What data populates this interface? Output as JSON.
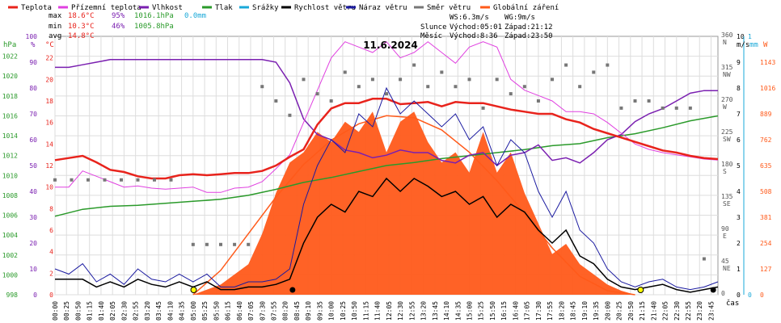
{
  "legend": [
    {
      "label": "Teplota",
      "color": "#e8231c"
    },
    {
      "label": "Přízemní teplota",
      "color": "#e040e0"
    },
    {
      "label": "Vlhkost",
      "color": "#7a1fb0"
    },
    {
      "label": "Tlak",
      "color": "#2a9a2a"
    },
    {
      "label": "Srážky",
      "color": "#19a8d8"
    },
    {
      "label": "Rychlost větru",
      "color": "#000000"
    },
    {
      "label": "Náraz větru",
      "color": "#1a1aa0"
    },
    {
      "label": "Směr větru",
      "color": "#777777"
    },
    {
      "label": "Globální záření",
      "color": "#ff5a1a"
    }
  ],
  "stats": {
    "max": {
      "label": "max",
      "temp": "18.6°C",
      "hum": "95%",
      "press": "1016.1hPa",
      "rain": "0.0mm"
    },
    "min": {
      "label": "min",
      "temp": "10.3°C",
      "hum": "46%",
      "press": "1005.8hPa"
    },
    "avg": {
      "label": "avg",
      "temp": "14.8°C"
    }
  },
  "wind_info": {
    "ws": "WS:6.3m/s",
    "wg": "WG:9m/s"
  },
  "sun": {
    "label": "Slunce",
    "rise": "Východ:05:01",
    "set": "Západ:21:12"
  },
  "moon": {
    "label": "Měsíc",
    "rise": "Východ:8:36",
    "set": "Západ:23:50"
  },
  "colors": {
    "temp": "#e8231c",
    "ground": "#e040e0",
    "hum": "#7a1fb0",
    "press": "#2a9a2a",
    "rain": "#19a8d8",
    "wind": "#000000",
    "gust": "#1a1aa0",
    "dir": "#777777",
    "rad": "#ff5a1a",
    "grid": "#dddddd"
  },
  "chart_data": {
    "type": "line",
    "title": "11.6.2024",
    "x_end_label": "čas",
    "x_ticks": [
      "00:00",
      "00:25",
      "00:50",
      "01:15",
      "01:40",
      "02:05",
      "02:30",
      "02:55",
      "03:20",
      "03:45",
      "04:10",
      "04:35",
      "05:00",
      "05:25",
      "05:50",
      "06:15",
      "06:40",
      "07:05",
      "07:30",
      "07:55",
      "08:20",
      "08:45",
      "09:10",
      "09:35",
      "10:00",
      "10:25",
      "10:50",
      "11:15",
      "11:40",
      "12:05",
      "12:30",
      "12:55",
      "13:20",
      "13:45",
      "14:10",
      "14:35",
      "15:00",
      "15:25",
      "15:50",
      "16:15",
      "16:40",
      "17:05",
      "17:30",
      "17:55",
      "18:20",
      "18:45",
      "19:10",
      "19:35",
      "20:00",
      "20:25",
      "20:50",
      "21:15",
      "21:40",
      "22:05",
      "22:30",
      "22:55",
      "23:20",
      "23:45"
    ],
    "axes": {
      "hpa": {
        "unit": "hPa",
        "range": [
          998,
          1024
        ],
        "ticks": [
          "998",
          "1000",
          "1002",
          "1004",
          "1006",
          "1008",
          "1010",
          "1012",
          "1014",
          "1016",
          "1018",
          "1020",
          "1022"
        ]
      },
      "pct": {
        "unit": "%",
        "range": [
          0,
          100
        ],
        "ticks": [
          "0",
          "10",
          "20",
          "30",
          "40",
          "50",
          "60",
          "70",
          "80",
          "90",
          "100"
        ]
      },
      "degc": {
        "unit": "°C",
        "range": [
          0,
          24
        ],
        "ticks": [
          "0",
          "2",
          "4",
          "6",
          "8",
          "10",
          "12",
          "14",
          "16",
          "18",
          "20",
          "22"
        ]
      },
      "dir": {
        "range": [
          0,
          360
        ],
        "ticks": [
          [
            "360",
            "N"
          ],
          [
            "315",
            "NW"
          ],
          [
            "270",
            "W"
          ],
          [
            "225",
            "SW"
          ],
          [
            "180",
            "S"
          ],
          [
            "135",
            "SE"
          ],
          [
            "90",
            "E"
          ],
          [
            "45",
            "NE"
          ],
          [
            "0",
            ""
          ]
        ]
      },
      "ms": {
        "unit": "m/s",
        "range": [
          0,
          10
        ],
        "ticks": [
          "0",
          "1",
          "2",
          "3",
          "4",
          "5",
          "6",
          "7",
          "8",
          "9",
          "10"
        ]
      },
      "mm": {
        "unit": "mm",
        "range": [
          0,
          1
        ],
        "ticks": [
          "0",
          "1"
        ]
      },
      "wm2": {
        "unit": "W",
        "range": [
          0,
          1270
        ],
        "ticks": [
          "0",
          "127",
          "254",
          "381",
          "508",
          "635",
          "762",
          "889",
          "1016",
          "1143"
        ]
      }
    },
    "series": [
      {
        "name": "Teplota",
        "axis": "degc",
        "x": [
          0,
          0.5,
          1,
          1.5,
          2,
          2.5,
          3,
          3.5,
          4,
          4.5,
          5,
          5.5,
          6,
          6.5,
          7,
          7.5,
          8,
          8.5,
          9,
          9.5,
          10,
          10.5,
          11,
          11.5,
          12,
          12.5,
          13,
          13.5,
          14,
          14.5,
          15,
          15.5,
          16,
          16.5,
          17,
          17.5,
          18,
          18.5,
          19,
          19.5,
          20,
          20.5,
          21,
          21.5,
          22,
          22.5,
          23,
          23.5,
          24
        ],
        "values": [
          12.5,
          12.7,
          12.9,
          12.3,
          11.6,
          11.4,
          11.0,
          10.8,
          10.8,
          11.1,
          11.2,
          11.1,
          11.2,
          11.3,
          11.3,
          11.5,
          12.0,
          12.8,
          13.5,
          15.8,
          17.3,
          17.8,
          17.8,
          18.2,
          18.2,
          17.7,
          17.8,
          17.9,
          17.5,
          17.9,
          17.8,
          17.8,
          17.5,
          17.2,
          17.0,
          16.8,
          16.8,
          16.3,
          16.0,
          15.4,
          15.0,
          14.6,
          14.2,
          13.8,
          13.4,
          13.2,
          12.9,
          12.7,
          12.6
        ]
      },
      {
        "name": "Přízemní teplota",
        "axis": "degc",
        "x": [
          0,
          0.5,
          1,
          1.5,
          2,
          2.5,
          3,
          3.5,
          4,
          4.5,
          5,
          5.5,
          6,
          6.5,
          7,
          7.5,
          8,
          8.5,
          9,
          9.5,
          10,
          10.5,
          11,
          11.5,
          12,
          12.5,
          13,
          13.5,
          14,
          14.5,
          15,
          15.5,
          16,
          16.5,
          17,
          17.5,
          18,
          18.5,
          19,
          19.5,
          20,
          20.5,
          21,
          21.5,
          22,
          22.5,
          23,
          23.5,
          24
        ],
        "values": [
          10.0,
          10.0,
          11.5,
          11.0,
          10.5,
          10.0,
          10.1,
          9.9,
          9.8,
          9.9,
          10.0,
          9.5,
          9.5,
          9.9,
          10.0,
          10.5,
          11.7,
          13.0,
          16.0,
          19.0,
          22.0,
          23.5,
          23.0,
          22.5,
          23.5,
          22.0,
          22.5,
          23.5,
          22.5,
          21.5,
          23.0,
          23.5,
          23.0,
          20.0,
          19.0,
          18.5,
          18.0,
          17.0,
          17.0,
          16.8,
          16.0,
          15.0,
          14.0,
          13.5,
          13.2,
          13.0,
          12.8,
          12.6,
          12.5
        ]
      },
      {
        "name": "Vlhkost",
        "axis": "pct",
        "x": [
          0,
          0.5,
          1,
          1.5,
          2,
          2.5,
          3,
          3.5,
          4,
          4.5,
          5,
          5.5,
          6,
          6.5,
          7,
          7.5,
          8,
          8.5,
          9,
          9.5,
          10,
          10.5,
          11,
          11.5,
          12,
          12.5,
          13,
          13.5,
          14,
          14.5,
          15,
          15.5,
          16,
          16.5,
          17,
          17.5,
          18,
          18.5,
          19,
          19.5,
          20,
          20.5,
          21,
          21.5,
          22,
          22.5,
          23,
          23.5,
          24
        ],
        "values": [
          88,
          88,
          89,
          90,
          91,
          91,
          91,
          91,
          91,
          91,
          91,
          91,
          91,
          91,
          91,
          91,
          90,
          82,
          68,
          62,
          60,
          56,
          55,
          53,
          54,
          56,
          55,
          55,
          52,
          51,
          54,
          55,
          50,
          54,
          55,
          58,
          52,
          53,
          51,
          55,
          60,
          62,
          67,
          70,
          72,
          75,
          78,
          79,
          79
        ]
      },
      {
        "name": "Tlak",
        "axis": "hpa",
        "x": [
          0,
          1,
          2,
          3,
          4,
          5,
          6,
          7,
          8,
          9,
          10,
          11,
          12,
          13,
          14,
          15,
          16,
          17,
          18,
          19,
          20,
          21,
          22,
          23,
          24
        ],
        "values": [
          1005.9,
          1006.6,
          1006.9,
          1007.0,
          1007.2,
          1007.4,
          1007.6,
          1008.0,
          1008.6,
          1009.3,
          1009.8,
          1010.4,
          1011.0,
          1011.3,
          1011.7,
          1012.0,
          1012.3,
          1012.6,
          1013.0,
          1013.2,
          1013.8,
          1014.2,
          1014.8,
          1015.5,
          1016.0
        ]
      },
      {
        "name": "Rychlost větru",
        "axis": "ms",
        "x": [
          0,
          0.5,
          1,
          1.5,
          2,
          2.5,
          3,
          3.5,
          4,
          4.5,
          5,
          5.5,
          6,
          6.5,
          7,
          7.5,
          8,
          8.5,
          9,
          9.5,
          10,
          10.5,
          11,
          11.5,
          12,
          12.5,
          13,
          13.5,
          14,
          14.5,
          15,
          15.5,
          16,
          16.5,
          17,
          17.5,
          18,
          18.5,
          19,
          19.5,
          20,
          20.5,
          21,
          21.5,
          22,
          22.5,
          23,
          23.5,
          24
        ],
        "values": [
          0.6,
          0.6,
          0.6,
          0.3,
          0.5,
          0.3,
          0.6,
          0.4,
          0.3,
          0.5,
          0.3,
          0.5,
          0.2,
          0.2,
          0.3,
          0.3,
          0.4,
          0.6,
          2.0,
          3.0,
          3.5,
          3.2,
          4.0,
          3.8,
          4.5,
          4.0,
          4.5,
          4.2,
          3.8,
          4.0,
          3.5,
          3.8,
          3.0,
          3.5,
          3.2,
          2.5,
          2.0,
          2.5,
          1.5,
          1.2,
          0.6,
          0.3,
          0.2,
          0.3,
          0.4,
          0.2,
          0.1,
          0.2,
          0.3
        ]
      },
      {
        "name": "Náraz větru",
        "axis": "ms",
        "x": [
          0,
          0.5,
          1,
          1.5,
          2,
          2.5,
          3,
          3.5,
          4,
          4.5,
          5,
          5.5,
          6,
          6.5,
          7,
          7.5,
          8,
          8.5,
          9,
          9.5,
          10,
          10.5,
          11,
          11.5,
          12,
          12.5,
          13,
          13.5,
          14,
          14.5,
          15,
          15.5,
          16,
          16.5,
          17,
          17.5,
          18,
          18.5,
          19,
          19.5,
          20,
          20.5,
          21,
          21.5,
          22,
          22.5,
          23,
          23.5,
          24
        ],
        "values": [
          1.0,
          0.8,
          1.2,
          0.5,
          0.8,
          0.4,
          1.0,
          0.6,
          0.5,
          0.8,
          0.5,
          0.8,
          0.3,
          0.3,
          0.5,
          0.5,
          0.6,
          1.0,
          3.5,
          5.0,
          6.0,
          5.5,
          7.0,
          6.5,
          8.0,
          7.0,
          7.5,
          7.0,
          6.5,
          7.0,
          6.0,
          6.5,
          5.0,
          6.0,
          5.5,
          4.0,
          3.0,
          4.0,
          2.5,
          2.0,
          1.0,
          0.5,
          0.3,
          0.5,
          0.6,
          0.3,
          0.2,
          0.3,
          0.5
        ]
      },
      {
        "name": "Globální záření",
        "axis": "wm2",
        "x": [
          5,
          6,
          7,
          7.5,
          8,
          8.5,
          9,
          9.5,
          10,
          10.5,
          11,
          11.5,
          12,
          12.5,
          13,
          13.5,
          14,
          14.5,
          15,
          15.5,
          16,
          16.5,
          17,
          17.5,
          18,
          18.5,
          19,
          19.5,
          20,
          20.5,
          21
        ],
        "values": [
          0,
          50,
          150,
          300,
          500,
          650,
          700,
          800,
          750,
          850,
          800,
          900,
          700,
          850,
          900,
          750,
          650,
          700,
          600,
          800,
          600,
          700,
          500,
          350,
          200,
          250,
          150,
          100,
          50,
          20,
          0
        ]
      },
      {
        "name": "clear_sky",
        "axis": "wm2",
        "x": [
          5,
          6,
          7,
          8,
          9,
          10,
          11,
          12,
          13,
          14,
          15,
          16,
          17,
          18,
          19,
          20,
          21
        ],
        "values": [
          0,
          120,
          300,
          480,
          640,
          760,
          840,
          880,
          870,
          810,
          700,
          560,
          400,
          230,
          90,
          20,
          0
        ]
      }
    ],
    "wind_direction": {
      "axis": "dir",
      "x": [
        0,
        0.6,
        1.2,
        1.8,
        2.4,
        3.0,
        3.6,
        4.2,
        5.0,
        5.5,
        6.0,
        6.5,
        7.0,
        7.5,
        8.0,
        8.5,
        9.0,
        9.5,
        10.0,
        10.5,
        11.0,
        11.5,
        12.0,
        12.5,
        13.0,
        13.5,
        14.0,
        14.5,
        15.0,
        15.5,
        16.0,
        16.5,
        17.0,
        17.5,
        18.0,
        18.5,
        19.0,
        19.5,
        20.0,
        20.5,
        21.0,
        21.5,
        22.0,
        22.5,
        23.0,
        23.5
      ],
      "values": [
        160,
        160,
        160,
        160,
        160,
        160,
        160,
        160,
        70,
        70,
        70,
        70,
        70,
        290,
        270,
        250,
        300,
        280,
        270,
        310,
        290,
        300,
        280,
        300,
        320,
        290,
        310,
        290,
        300,
        260,
        300,
        280,
        290,
        270,
        300,
        320,
        290,
        310,
        320,
        260,
        270,
        270,
        260,
        260,
        260,
        50
      ]
    }
  }
}
